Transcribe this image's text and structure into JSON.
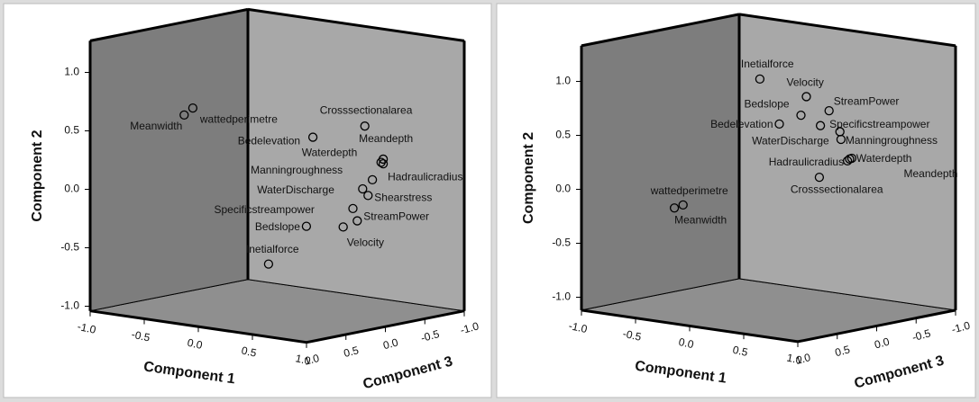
{
  "chart_data": [
    {
      "type": "scatter3d",
      "x_label": "Component 1",
      "y_label": "Component 2",
      "z_label": "Component 3",
      "marker_color": "#000000",
      "labels": [
        "Meanwidth",
        "wattedperimetre",
        "Bedelevation",
        "Crosssectionalarea",
        "Meandepth",
        "Hadraulicradius",
        "Waterdepth",
        "Manningroughness",
        "WaterDischarge",
        "Shearstress",
        "Specificstreampower",
        "StreamPower",
        "Velocity",
        "Bedslope",
        "Inetialforce"
      ],
      "x": [
        -0.86,
        -0.78,
        0.33,
        0.81,
        0.98,
        0.98,
        0.96,
        0.88,
        0.79,
        0.84,
        0.7,
        0.74,
        0.61,
        0.27,
        -0.08
      ],
      "y": [
        0.52,
        0.59,
        0.49,
        0.65,
        0.39,
        0.35,
        0.36,
        0.2,
        0.11,
        0.06,
        -0.07,
        -0.17,
        -0.24,
        -0.28,
        -0.65
      ],
      "z": [
        0,
        0,
        0,
        0,
        0,
        0,
        0,
        0,
        0,
        0,
        0,
        0,
        0,
        0,
        0
      ],
      "xlim": [
        -1,
        1
      ],
      "ylim": [
        -1.04,
        1.27
      ],
      "zlim": [
        -1,
        1
      ],
      "xticks": [
        {
          "value": -1,
          "label": "-1.0"
        },
        -0.5,
        {
          "value": 0,
          "label": "0.0"
        },
        0.5,
        {
          "value": 1,
          "label": "1.0"
        }
      ],
      "yticks": [
        {
          "value": -1,
          "label": "-1.0"
        },
        -0.5,
        {
          "value": 0,
          "label": "0.0"
        },
        0.5,
        {
          "value": 1,
          "label": "1.0"
        }
      ],
      "zticks": [
        {
          "value": -1,
          "label": "-1.0"
        },
        -0.5,
        {
          "value": 0,
          "label": "0.0"
        },
        0.5,
        {
          "value": 1,
          "label": "1.0"
        }
      ]
    },
    {
      "type": "scatter3d",
      "x_label": "Component 1",
      "y_label": "Component 2",
      "z_label": "Component 3",
      "marker_color": "#000000",
      "labels": [
        "Inetialforce",
        "Velocity",
        "Bedslope",
        "StreamPower",
        "Bedelevation",
        "Specificstreampower",
        "WaterDischarge",
        "Manningroughness",
        "Hadraulicradius",
        "Waterdepth",
        "Meandepth",
        "Crosssectionalarea",
        "wattedperimetre",
        "Meanwidth"
      ],
      "x": [
        -0.08,
        0.35,
        0.3,
        0.56,
        0.1,
        0.48,
        0.66,
        0.67,
        0.73,
        0.77,
        0.75,
        0.47,
        -0.79,
        -0.87
      ],
      "y": [
        1.01,
        0.91,
        0.73,
        0.81,
        0.62,
        0.66,
        0.63,
        0.56,
        0.37,
        0.4,
        0.39,
        0.18,
        -0.26,
        -0.3
      ],
      "z": [
        0,
        0,
        0,
        0,
        0,
        0,
        0,
        0,
        0,
        0,
        0,
        0,
        0,
        0
      ],
      "xlim": [
        -1,
        1
      ],
      "ylim": [
        -1.12,
        1.33
      ],
      "zlim": [
        -1,
        1
      ],
      "xticks": [
        {
          "value": -1,
          "label": "-1.0"
        },
        -0.5,
        {
          "value": 0,
          "label": "0.0"
        },
        0.5,
        {
          "value": 1,
          "label": "1.0"
        }
      ],
      "yticks": [
        {
          "value": -1,
          "label": "-1.0"
        },
        -0.5,
        {
          "value": 0,
          "label": "0.0"
        },
        0.5,
        {
          "value": 1,
          "label": "1.0"
        }
      ],
      "zticks": [
        {
          "value": -1,
          "label": "-1.0"
        },
        -0.5,
        {
          "value": 0,
          "label": "0.0"
        },
        0.5,
        {
          "value": 1,
          "label": "1.0"
        }
      ]
    }
  ]
}
